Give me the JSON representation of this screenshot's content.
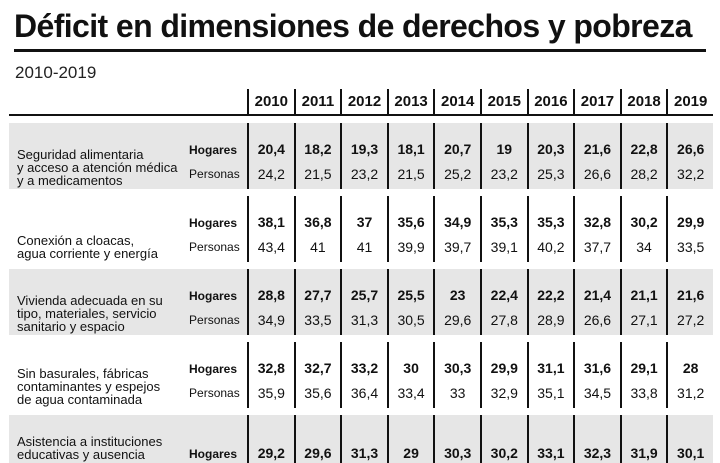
{
  "title": "Déficit en dimensiones de derechos y pobreza",
  "subtitle": "2010-2019",
  "years": [
    "2010",
    "2011",
    "2012",
    "2013",
    "2014",
    "2015",
    "2016",
    "2017",
    "2018",
    "2019"
  ],
  "rows": [
    {
      "dimension": [
        "Seguridad alimentaria",
        "y acceso a atención médica",
        "y a medicamentos"
      ],
      "hogares_label": "Hogares",
      "personas_label": "Personas",
      "hogares": [
        "20,4",
        "18,2",
        "19,3",
        "18,1",
        "20,7",
        "19",
        "20,3",
        "21,6",
        "22,8",
        "26,6"
      ],
      "personas": [
        "24,2",
        "21,5",
        "23,2",
        "21,5",
        "25,2",
        "23,2",
        "25,3",
        "26,6",
        "28,2",
        "32,2"
      ]
    },
    {
      "dimension": [
        "Conexión a cloacas,",
        "agua corriente y energía"
      ],
      "hogares_label": "Hogares",
      "personas_label": "Personas",
      "hogares": [
        "38,1",
        "36,8",
        "37",
        "35,6",
        "34,9",
        "35,3",
        "35,3",
        "32,8",
        "30,2",
        "29,9"
      ],
      "personas": [
        "43,4",
        "41",
        "41",
        "39,9",
        "39,7",
        "39,1",
        "40,2",
        "37,7",
        "34",
        "33,5"
      ]
    },
    {
      "dimension": [
        "Vivienda adecuada en su",
        "tipo, materiales, servicio",
        "sanitario y espacio"
      ],
      "hogares_label": "Hogares",
      "personas_label": "Personas",
      "hogares": [
        "28,8",
        "27,7",
        "25,7",
        "25,5",
        "23",
        "22,4",
        "22,2",
        "21,4",
        "21,1",
        "21,6"
      ],
      "personas": [
        "34,9",
        "33,5",
        "31,3",
        "30,5",
        "29,6",
        "27,8",
        "28,9",
        "26,6",
        "27,1",
        "27,2"
      ]
    },
    {
      "dimension": [
        "Sin basurales, fábricas",
        "contaminantes y espejos",
        "de agua contaminada"
      ],
      "hogares_label": "Hogares",
      "personas_label": "Personas",
      "hogares": [
        "32,8",
        "32,7",
        "33,2",
        "30",
        "30,3",
        "29,9",
        "31,1",
        "31,6",
        "29,1",
        "28"
      ],
      "personas": [
        "35,9",
        "35,6",
        "36,4",
        "33,4",
        "33",
        "32,9",
        "35,1",
        "34,5",
        "33,8",
        "31,2"
      ]
    },
    {
      "dimension": [
        "Asistencia a instituciones",
        "educativas y ausencia"
      ],
      "hogares_label": "Hogares",
      "hogares": [
        "29,2",
        "29,6",
        "31,3",
        "29",
        "30,3",
        "30,2",
        "33,1",
        "32,3",
        "31,9",
        "30,1"
      ]
    }
  ]
}
